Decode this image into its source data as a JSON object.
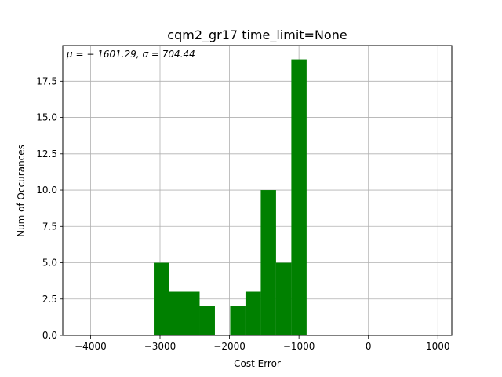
{
  "chart_data": {
    "type": "bar",
    "title": "cqm2_gr17 time_limit=None",
    "xlabel": "Cost Error",
    "ylabel": "Num of Occurances",
    "annotation": "μ = − 1601.29,  σ = 704.44",
    "xlim": [
      -4400,
      1200
    ],
    "ylim": [
      0,
      19.95
    ],
    "x_ticks": [
      -4000,
      -3000,
      -2000,
      -1000,
      0,
      1000
    ],
    "x_tick_labels": [
      "−4000",
      "−3000",
      "−2000",
      "−1000",
      "0",
      "1000"
    ],
    "y_ticks": [
      0.0,
      2.5,
      5.0,
      7.5,
      10.0,
      12.5,
      15.0,
      17.5
    ],
    "y_tick_labels": [
      "0.0",
      "2.5",
      "5.0",
      "7.5",
      "10.0",
      "12.5",
      "15.0",
      "17.5"
    ],
    "grid": true,
    "bar_color": "#008000",
    "bins": [
      {
        "x0": -3090,
        "x1": -2870,
        "value": 5
      },
      {
        "x0": -2870,
        "x1": -2650,
        "value": 3
      },
      {
        "x0": -2650,
        "x1": -2430,
        "value": 3
      },
      {
        "x0": -2430,
        "x1": -2210,
        "value": 2
      },
      {
        "x0": -2210,
        "x1": -1990,
        "value": 0
      },
      {
        "x0": -1990,
        "x1": -1770,
        "value": 2
      },
      {
        "x0": -1770,
        "x1": -1550,
        "value": 3
      },
      {
        "x0": -1550,
        "x1": -1330,
        "value": 10
      },
      {
        "x0": -1330,
        "x1": -1110,
        "value": 5
      },
      {
        "x0": -1110,
        "x1": -890,
        "value": 19
      }
    ]
  }
}
